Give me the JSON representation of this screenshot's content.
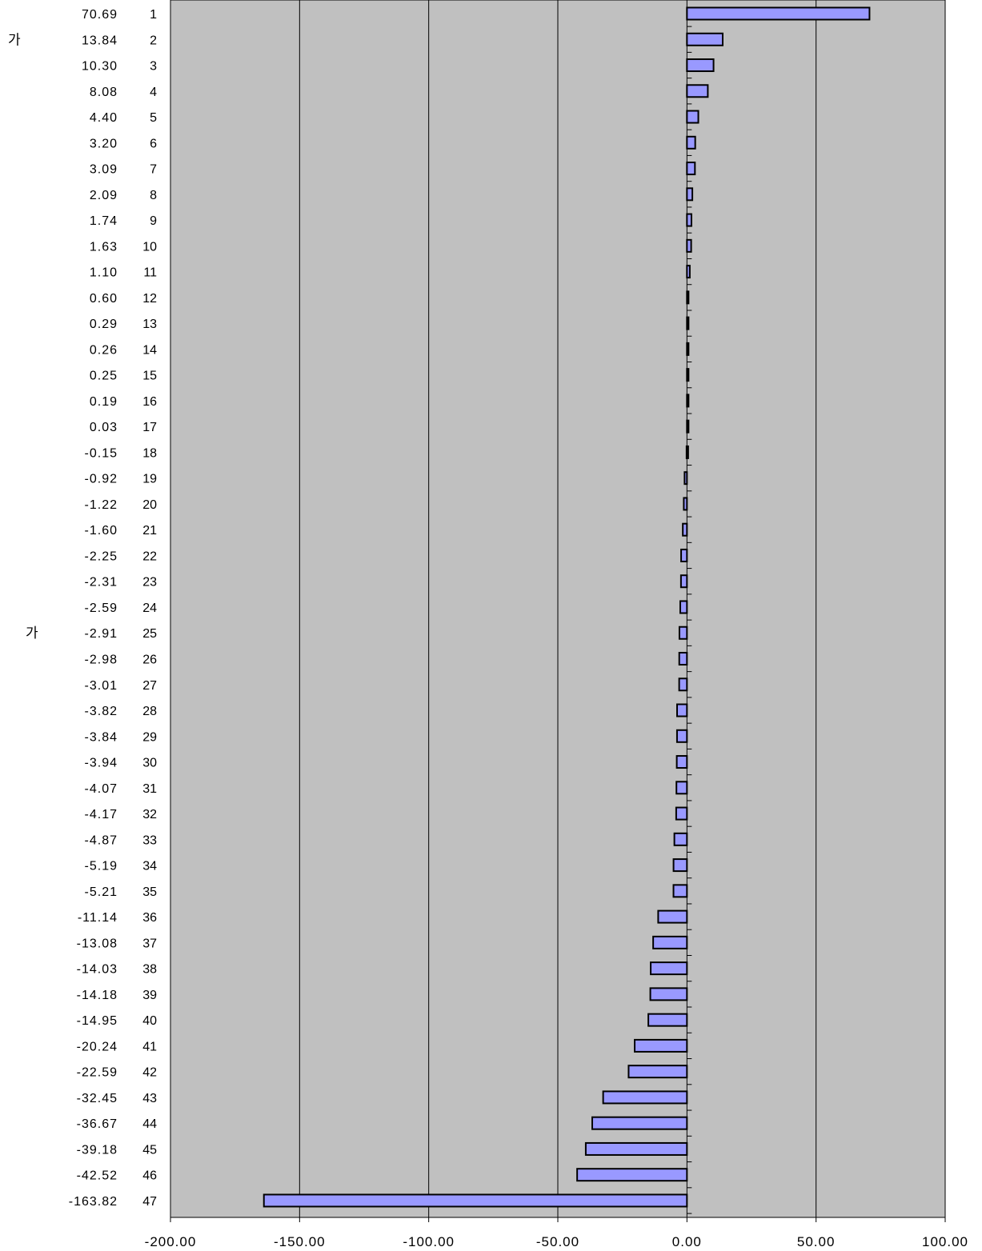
{
  "chart_data": {
    "type": "bar",
    "orientation": "horizontal",
    "categories": [
      "1",
      "2",
      "3",
      "4",
      "5",
      "6",
      "7",
      "8",
      "9",
      "10",
      "11",
      "12",
      "13",
      "14",
      "15",
      "16",
      "17",
      "18",
      "19",
      "20",
      "21",
      "22",
      "23",
      "24",
      "25",
      "26",
      "27",
      "28",
      "29",
      "30",
      "31",
      "32",
      "33",
      "34",
      "35",
      "36",
      "37",
      "38",
      "39",
      "40",
      "41",
      "42",
      "43",
      "44",
      "45",
      "46",
      "47"
    ],
    "values": [
      70.69,
      13.84,
      10.3,
      8.08,
      4.4,
      3.2,
      3.09,
      2.09,
      1.74,
      1.63,
      1.1,
      0.6,
      0.29,
      0.26,
      0.25,
      0.19,
      0.03,
      -0.15,
      -0.92,
      -1.22,
      -1.6,
      -2.25,
      -2.31,
      -2.59,
      -2.91,
      -2.98,
      -3.01,
      -3.82,
      -3.84,
      -3.94,
      -4.07,
      -4.17,
      -4.87,
      -5.19,
      -5.21,
      -11.14,
      -13.08,
      -14.03,
      -14.18,
      -14.95,
      -20.24,
      -22.59,
      -32.45,
      -36.67,
      -39.18,
      -42.52,
      -163.82
    ],
    "value_labels": [
      "70.69",
      "13.84",
      "10.30",
      "8.08",
      "4.40",
      "3.20",
      "3.09",
      "2.09",
      "1.74",
      "1.63",
      "1.10",
      "0.60",
      "0.29",
      "0.26",
      "0.25",
      "0.19",
      "0.03",
      "-0.15",
      "-0.92",
      "-1.22",
      "-1.60",
      "-2.25",
      "-2.31",
      "-2.59",
      "-2.91",
      "-2.98",
      "-3.01",
      "-3.82",
      "-3.84",
      "-3.94",
      "-4.07",
      "-4.17",
      "-4.87",
      "-5.19",
      "-5.21",
      "-11.14",
      "-13.08",
      "-14.03",
      "-14.18",
      "-14.95",
      "-20.24",
      "-22.59",
      "-32.45",
      "-36.67",
      "-39.18",
      "-42.52",
      "-163.82"
    ],
    "xlim": [
      -200,
      100
    ],
    "xticks": [
      -200,
      -150,
      -100,
      -50,
      0,
      50,
      100
    ],
    "xtick_labels": [
      "-200.00",
      "-150.00",
      "-100.00",
      "-50.00",
      "0.00",
      "50.00",
      "100.00"
    ],
    "side_labels": [
      {
        "text": "가",
        "row": 2
      },
      {
        "text": "가",
        "row": 25
      }
    ],
    "grid": true,
    "colors": {
      "plot_background": "#c0c0c0",
      "bar_fill": "#9999ff",
      "bar_stroke": "#000000",
      "gridline": "#000000"
    }
  }
}
